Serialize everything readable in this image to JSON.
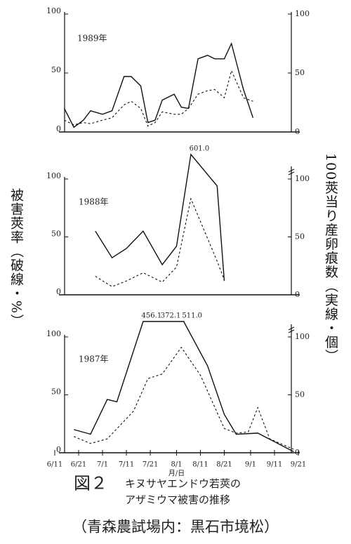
{
  "chart_data": [
    {
      "type": "line",
      "title": "1989年",
      "xlim": [
        0,
        102
      ],
      "ylim": [
        0,
        100
      ],
      "yticks": [
        0,
        50,
        100
      ],
      "y2lim": [
        0,
        100
      ],
      "y2ticks": [
        0,
        50,
        100
      ],
      "series": [
        {
          "color": "#111111",
          "dash": false,
          "axis": "y2",
          "x": [
            4,
            8,
            12,
            15,
            20,
            24,
            29,
            32,
            36,
            39,
            42,
            45,
            50,
            53,
            56,
            60,
            64,
            67,
            71,
            74,
            79,
            83
          ],
          "values": [
            20,
            4,
            10,
            18,
            15,
            18,
            47,
            47,
            39,
            8,
            10,
            27,
            32,
            21,
            20,
            62,
            65,
            62,
            62,
            75,
            36,
            12
          ]
        },
        {
          "color": "#111111",
          "dash": true,
          "x": [
            4,
            8,
            12,
            15,
            20,
            24,
            29,
            32,
            36,
            39,
            42,
            45,
            50,
            53,
            56,
            60,
            64,
            67,
            71,
            74,
            79,
            83
          ],
          "values": [
            10,
            6,
            8,
            7,
            10,
            12,
            23,
            26,
            20,
            5,
            8,
            17,
            15,
            15,
            20,
            32,
            35,
            36,
            29,
            52,
            29,
            26
          ]
        }
      ]
    },
    {
      "type": "line",
      "title": "1988年",
      "xlim": [
        0,
        102
      ],
      "ylim": [
        0,
        100
      ],
      "yticks": [
        0,
        50,
        100
      ],
      "y2lim": [
        0,
        100
      ],
      "y2ticks": [
        0,
        50,
        100
      ],
      "ylabel": "被害莢率（破線・%）",
      "y2label": "100莢当り産卵痕数（実線・個）",
      "series": [
        {
          "color": "#111111",
          "dash": false,
          "axis": "y2",
          "x": [
            17,
            24,
            30,
            37,
            45,
            51,
            57,
            68,
            71
          ],
          "values": [
            55,
            32,
            40,
            55,
            26,
            42,
            601,
            94,
            12
          ],
          "value_labels": [
            null,
            null,
            null,
            null,
            null,
            null,
            "601.0",
            null,
            null
          ]
        },
        {
          "color": "#111111",
          "dash": true,
          "x": [
            17,
            24,
            30,
            37,
            45,
            51,
            57,
            68,
            71
          ],
          "values": [
            16,
            7,
            12,
            19,
            11,
            24,
            83,
            29,
            13
          ]
        }
      ]
    },
    {
      "type": "line",
      "title": "1987年",
      "xlim": [
        0,
        102
      ],
      "ylim": [
        0,
        100
      ],
      "yticks": [
        0,
        50,
        100
      ],
      "y2lim": [
        0,
        100
      ],
      "y2ticks": [
        0,
        50,
        100
      ],
      "xlabel": "月/日",
      "xticks": [
        {
          "value": 0,
          "label": "6/11"
        },
        {
          "value": 10,
          "label": "6/21"
        },
        {
          "value": 20,
          "label": "7/1"
        },
        {
          "value": 30,
          "label": "7/11"
        },
        {
          "value": 40,
          "label": "7/21"
        },
        {
          "value": 51,
          "label": "8/1"
        },
        {
          "value": 61,
          "label": "8/11"
        },
        {
          "value": 71,
          "label": "8/21"
        },
        {
          "value": 82,
          "label": "9/1"
        },
        {
          "value": 92,
          "label": "9/11"
        },
        {
          "value": 102,
          "label": "9/21"
        }
      ],
      "series": [
        {
          "color": "#111111",
          "dash": false,
          "axis": "y2",
          "x": [
            8,
            15,
            22,
            26,
            37,
            45,
            54,
            64,
            71,
            76,
            85,
            100
          ],
          "values": [
            20,
            16,
            46,
            44,
            456.1,
            372.1,
            511,
            75,
            33,
            16,
            17,
            1
          ],
          "value_labels": [
            null,
            null,
            null,
            null,
            "456.1",
            "372.1",
            "511.0",
            null,
            null,
            null,
            null,
            null
          ]
        },
        {
          "color": "#111111",
          "dash": true,
          "x": [
            8,
            15,
            22,
            33,
            39,
            45,
            53,
            61,
            71,
            76,
            81,
            85,
            90,
            100
          ],
          "values": [
            14,
            8,
            12,
            36,
            64,
            68,
            91,
            67,
            21,
            17,
            18,
            39,
            12,
            3
          ]
        }
      ]
    }
  ],
  "caption": {
    "figure": "図２",
    "lines": [
      "キヌサヤエンドウ若莢の",
      "アザミウマ被害の推移"
    ],
    "location": "（青森農試場内：黒石市境松）"
  }
}
